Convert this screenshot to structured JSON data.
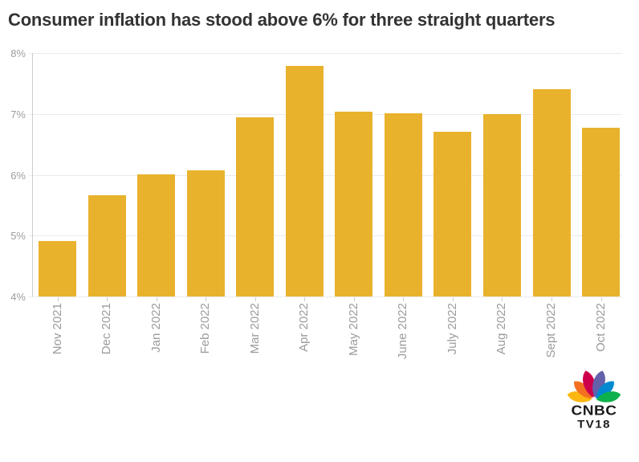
{
  "title": "Consumer inflation has stood above 6% for three straight quarters",
  "chart_data": {
    "type": "bar",
    "title": "Consumer inflation has stood above 6% for three straight quarters",
    "categories": [
      "Nov 2021",
      "Dec 2021",
      "Jan 2022",
      "Feb 2022",
      "Mar 2022",
      "Apr 2022",
      "May 2022",
      "June 2022",
      "July 2022",
      "Aug 2022",
      "Sept 2022",
      "Oct 2022"
    ],
    "values": [
      4.91,
      5.66,
      6.01,
      6.07,
      6.95,
      7.79,
      7.04,
      7.01,
      6.71,
      7.0,
      7.41,
      6.77
    ],
    "xlabel": "",
    "ylabel": "",
    "ylim": [
      4,
      8
    ],
    "ytick_values": [
      4,
      5,
      6,
      7,
      8
    ],
    "ytick_labels": [
      "4%",
      "5%",
      "6%",
      "7%",
      "8%"
    ],
    "grid": true,
    "legend_position": "none",
    "bar_color": "#E9B22D"
  },
  "colors": {
    "bar": "#E9B22D",
    "title_text": "#333333",
    "axis_label": "#9b9b9b",
    "gridline": "#ebebeb",
    "axis_line": "#cccccc",
    "logo_text": "#1b1b1b"
  },
  "logo": {
    "line1": "CNBC",
    "line2": "TV18",
    "feather_colors": [
      "#FCB711",
      "#F37021",
      "#CC004C",
      "#6460AA",
      "#0089D0",
      "#0DB14B"
    ]
  }
}
